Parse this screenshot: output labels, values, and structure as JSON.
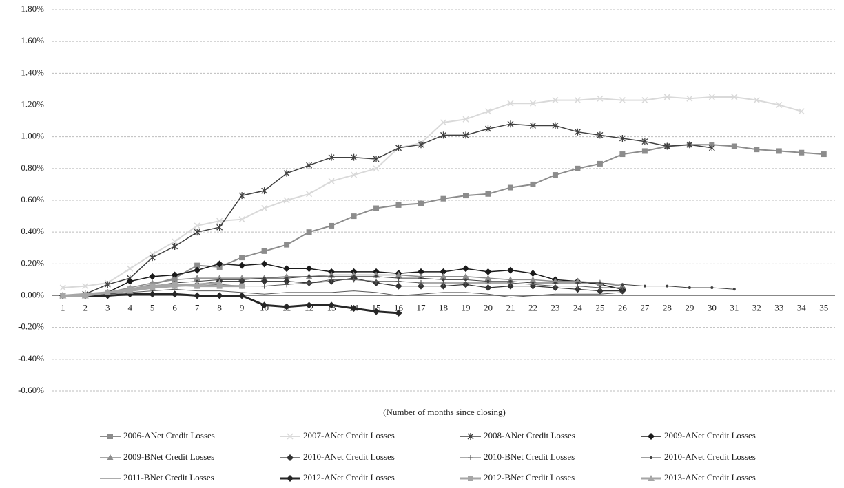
{
  "chart_data": {
    "type": "line",
    "x_label": "(Number of months since closing)",
    "categories": [
      "1",
      "2",
      "3",
      "4",
      "5",
      "6",
      "7",
      "8",
      "9",
      "10",
      "11",
      "12",
      "13",
      "14",
      "15",
      "16",
      "17",
      "18",
      "19",
      "20",
      "21",
      "22",
      "23",
      "24",
      "25",
      "26",
      "27",
      "28",
      "29",
      "30",
      "31",
      "32",
      "33",
      "34",
      "35"
    ],
    "ylim": [
      -0.6,
      1.8
    ],
    "yticks": [
      {
        "value": -0.6,
        "label": "-0.60%"
      },
      {
        "value": -0.4,
        "label": "-0.40%"
      },
      {
        "value": -0.2,
        "label": "-0.20%"
      },
      {
        "value": 0,
        "label": "0.00%"
      },
      {
        "value": 0.2,
        "label": "0.20%"
      },
      {
        "value": 0.4,
        "label": "0.40%"
      },
      {
        "value": 0.6,
        "label": "0.60%"
      },
      {
        "value": 0.8,
        "label": "0.80%"
      },
      {
        "value": 1.0,
        "label": "1.00%"
      },
      {
        "value": 1.2,
        "label": "1.20%"
      },
      {
        "value": 1.4,
        "label": "1.40%"
      },
      {
        "value": 1.6,
        "label": "1.60%"
      },
      {
        "value": 1.8,
        "label": "1.80%"
      }
    ],
    "grid": true,
    "series": [
      {
        "name": "2006-ANet Credit Losses",
        "color": "#8c8c8c",
        "marker": "square",
        "width": 2,
        "values": [
          0,
          0,
          0.01,
          0.04,
          0.07,
          0.11,
          0.19,
          0.18,
          0.24,
          0.28,
          0.32,
          0.4,
          0.44,
          0.5,
          0.55,
          0.57,
          0.58,
          0.61,
          0.63,
          0.64,
          0.68,
          0.7,
          0.76,
          0.8,
          0.83,
          0.89,
          0.91,
          0.94,
          0.95,
          0.95,
          0.94,
          0.92,
          0.91,
          0.9,
          0.89
        ]
      },
      {
        "name": "2007-ANet Credit Losses",
        "color": "#d9d9d9",
        "marker": "x",
        "width": 2,
        "values": [
          0.05,
          0.06,
          0.08,
          0.17,
          0.26,
          0.34,
          0.44,
          0.47,
          0.48,
          0.55,
          0.6,
          0.64,
          0.72,
          0.76,
          0.8,
          0.93,
          0.96,
          1.09,
          1.11,
          1.16,
          1.21,
          1.21,
          1.23,
          1.23,
          1.24,
          1.23,
          1.23,
          1.25,
          1.24,
          1.25,
          1.25,
          1.23,
          1.2,
          1.16,
          null
        ]
      },
      {
        "name": "2008-ANet Credit Losses",
        "color": "#404040",
        "marker": "star",
        "width": 1.5,
        "values": [
          0,
          0.01,
          0.07,
          0.11,
          0.24,
          0.31,
          0.4,
          0.43,
          0.63,
          0.66,
          0.77,
          0.82,
          0.87,
          0.87,
          0.86,
          0.93,
          0.95,
          1.01,
          1.01,
          1.05,
          1.08,
          1.07,
          1.07,
          1.03,
          1.01,
          0.99,
          0.97,
          0.94,
          0.95,
          0.93,
          null,
          null,
          null,
          null,
          null
        ]
      },
      {
        "name": "2009-ANet Credit Losses",
        "color": "#1a1a1a",
        "marker": "diamond",
        "width": 1.5,
        "values": [
          0,
          0,
          0.02,
          0.09,
          0.12,
          0.13,
          0.16,
          0.2,
          0.19,
          0.2,
          0.17,
          0.17,
          0.15,
          0.15,
          0.15,
          0.14,
          0.15,
          0.15,
          0.17,
          0.15,
          0.16,
          0.14,
          0.1,
          0.09,
          0.07,
          0.04,
          null,
          null,
          null,
          null,
          null,
          null,
          null,
          null,
          null
        ]
      },
      {
        "name": "2009-BNet Credit Losses",
        "color": "#8c8c8c",
        "marker": "triangle",
        "width": 1.5,
        "values": [
          0,
          0,
          0.02,
          0.05,
          0.08,
          0.1,
          0.11,
          0.11,
          0.11,
          0.11,
          0.12,
          0.12,
          0.13,
          0.13,
          0.13,
          0.13,
          0.12,
          0.12,
          0.12,
          0.11,
          0.1,
          0.1,
          0.09,
          0.09,
          0.08,
          0.06,
          null,
          null,
          null,
          null,
          null,
          null,
          null,
          null,
          null
        ]
      },
      {
        "name": "2010-ANet Credit Losses",
        "color": "#333333",
        "marker": "diamond",
        "width": 1.2,
        "values": [
          0,
          0,
          0.01,
          0.03,
          0.05,
          0.07,
          0.07,
          0.09,
          0.09,
          0.09,
          0.09,
          0.08,
          0.09,
          0.11,
          0.08,
          0.06,
          0.06,
          0.06,
          0.07,
          0.05,
          0.06,
          0.06,
          0.05,
          0.04,
          0.03,
          0.03,
          null,
          null,
          null,
          null,
          null,
          null,
          null,
          null,
          null
        ]
      },
      {
        "name": "2010-BNet Credit Losses",
        "color": "#595959",
        "marker": "plus",
        "width": 1,
        "values": [
          0,
          0,
          0.01,
          0.03,
          0.05,
          0.06,
          0.06,
          0.07,
          0.06,
          0.06,
          0.07,
          0.08,
          0.1,
          0.1,
          0.09,
          0.09,
          0.08,
          0.08,
          0.08,
          0.08,
          0.08,
          0.07,
          0.06,
          0.06,
          0.05,
          0.05,
          null,
          null,
          null,
          null,
          null,
          null,
          null,
          null,
          null
        ]
      },
      {
        "name": "2010-ANet Credit Losses",
        "color": "#404040",
        "marker": "dot",
        "width": 1,
        "values": [
          0,
          0.01,
          0.02,
          0.04,
          0.06,
          0.08,
          0.09,
          0.1,
          0.1,
          0.11,
          0.11,
          0.12,
          0.12,
          0.12,
          0.12,
          0.11,
          0.11,
          0.1,
          0.1,
          0.09,
          0.09,
          0.08,
          0.08,
          0.08,
          0.08,
          0.07,
          0.06,
          0.06,
          0.05,
          0.05,
          0.04,
          null,
          null,
          null,
          null
        ]
      },
      {
        "name": "2011-BNet Credit Losses",
        "color": "#595959",
        "marker": "none",
        "width": 1,
        "values": [
          0,
          0,
          0.01,
          0.02,
          0.03,
          0.04,
          0.03,
          0.03,
          0.02,
          0.01,
          0.02,
          0.02,
          0.02,
          0.03,
          0.02,
          0,
          0.01,
          0.02,
          0.02,
          0.01,
          -0.01,
          0,
          0.01,
          0.01,
          0.01,
          0.02,
          null,
          null,
          null,
          null,
          null,
          null,
          null,
          null,
          null
        ]
      },
      {
        "name": "2012-ANet Credit Losses",
        "color": "#262626",
        "marker": "diamond",
        "width": 3,
        "values": [
          0,
          0,
          0,
          0.01,
          0.01,
          0.01,
          0,
          0,
          0,
          -0.06,
          -0.07,
          -0.06,
          -0.06,
          -0.08,
          -0.1,
          -0.11,
          null,
          null,
          null,
          null,
          null,
          null,
          null,
          null,
          null,
          null,
          null,
          null,
          null,
          null,
          null,
          null,
          null,
          null,
          null
        ]
      },
      {
        "name": "2012-BNet Credit Losses",
        "color": "#a6a6a6",
        "marker": "square",
        "width": 3,
        "values": [
          0,
          0,
          0.02,
          0.04,
          0.06,
          0.07,
          0.06,
          0.06,
          0.06,
          null,
          null,
          null,
          null,
          null,
          null,
          null,
          null,
          null,
          null,
          null,
          null,
          null,
          null,
          null,
          null,
          null,
          null,
          null,
          null,
          null,
          null,
          null,
          null,
          null,
          null
        ]
      },
      {
        "name": "2013-ANet Credit Losses",
        "color": "#a6a6a6",
        "marker": "triangle",
        "width": 3,
        "values": [
          0,
          0.01,
          0.02,
          0.03,
          0.05,
          0.06,
          0.07,
          0.08,
          null,
          null,
          null,
          null,
          null,
          null,
          null,
          null,
          null,
          null,
          null,
          null,
          null,
          null,
          null,
          null,
          null,
          null,
          null,
          null,
          null,
          null,
          null,
          null,
          null,
          null,
          null
        ]
      }
    ]
  }
}
